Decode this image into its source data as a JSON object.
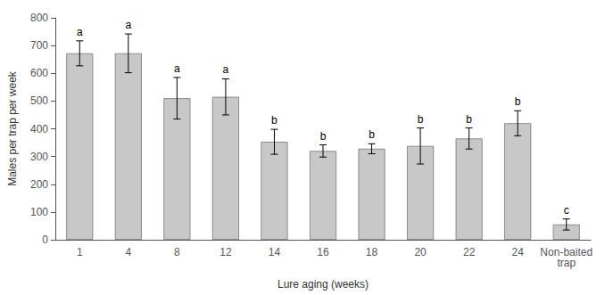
{
  "chart_data": {
    "type": "bar",
    "categories": [
      "1",
      "4",
      "8",
      "12",
      "14",
      "16",
      "18",
      "20",
      "22",
      "24",
      "Non-baited\ntrap"
    ],
    "values": [
      672,
      672,
      510,
      515,
      353,
      320,
      328,
      338,
      365,
      420,
      55
    ],
    "errors": [
      45,
      70,
      75,
      65,
      45,
      22,
      18,
      65,
      38,
      45,
      20
    ],
    "letters": [
      "a",
      "a",
      "a",
      "a",
      "b",
      "b",
      "b",
      "b",
      "b",
      "b",
      "c"
    ],
    "color": "#c8c8c8",
    "xlabel": "Lure aging (weeks)",
    "ylabel": "Males per trap per week",
    "ylim": [
      0,
      800
    ],
    "yticks": [
      0,
      100,
      200,
      300,
      400,
      500,
      600,
      700,
      800
    ],
    "grid": false
  }
}
